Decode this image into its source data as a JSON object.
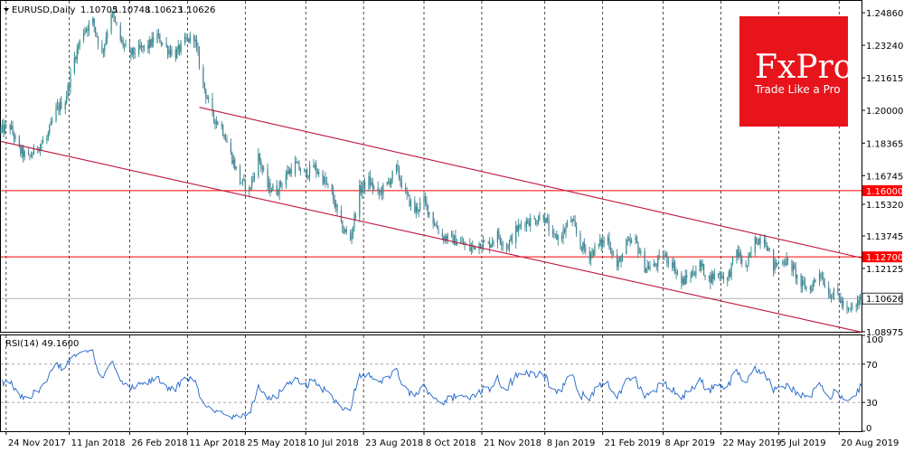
{
  "chart_data": [
    {
      "type": "candlestick",
      "title": "EURUSD,Daily",
      "ohlc": {
        "open": "1.10705",
        "high": "1.10748",
        "low": "1.10623",
        "close": "1.10626"
      },
      "ylim": [
        1.0897,
        1.2545
      ],
      "y_ticks": [
        {
          "value": 1.2486,
          "label": "1.24860"
        },
        {
          "value": 1.2324,
          "label": "1.23240"
        },
        {
          "value": 1.21615,
          "label": "1.21615"
        },
        {
          "value": 1.2,
          "label": "1.20000"
        },
        {
          "value": 1.18365,
          "label": "1.18365"
        },
        {
          "value": 1.16745,
          "label": "1.16745"
        },
        {
          "value": 1.1532,
          "label": "1.15320"
        },
        {
          "value": 1.13745,
          "label": "1.13745"
        },
        {
          "value": 1.12125,
          "label": "1.12125"
        },
        {
          "value": 1.08975,
          "label": "1.08975"
        }
      ],
      "dates": [
        "24 Nov 2017",
        "11 Jan 2018",
        "26 Feb 2018",
        "11 Apr 2018",
        "25 May 2018",
        "10 Jul 2018",
        "23 Aug 2018",
        "8 Oct 2018",
        "21 Nov 2018",
        "8 Jan 2019",
        "21 Feb 2019",
        "8 Apr 2019",
        "22 May 2019",
        "5 Jul 2019",
        "20 Aug 2019"
      ],
      "x_range": [
        "2017-11-20",
        "2019-09-06"
      ],
      "horizontal_lines": [
        {
          "value": 1.16,
          "label": "1.16000",
          "color": "#ff0000"
        },
        {
          "value": 1.127,
          "label": "1.12700",
          "color": "#ff0000"
        }
      ],
      "current_price": {
        "value": 1.10626,
        "label": "1.10626"
      },
      "channel": {
        "color": "#c0143c",
        "upper": [
          [
            "2018-04-20",
            1.2015
          ],
          [
            "2019-09-06",
            1.1265
          ]
        ],
        "lower": [
          [
            "2017-11-20",
            1.1845
          ],
          [
            "2019-09-06",
            1.0895
          ]
        ]
      },
      "price_path": [
        [
          "2017-11-20",
          1.19
        ],
        [
          "2017-11-27",
          1.192
        ],
        [
          "2017-12-04",
          1.18
        ],
        [
          "2017-12-11",
          1.176
        ],
        [
          "2017-12-18",
          1.182
        ],
        [
          "2017-12-25",
          1.186
        ],
        [
          "2018-01-01",
          1.2
        ],
        [
          "2018-01-08",
          1.205
        ],
        [
          "2018-01-15",
          1.226
        ],
        [
          "2018-01-22",
          1.24
        ],
        [
          "2018-01-29",
          1.244
        ],
        [
          "2018-02-05",
          1.228
        ],
        [
          "2018-02-12",
          1.249
        ],
        [
          "2018-02-19",
          1.235
        ],
        [
          "2018-02-26",
          1.228
        ],
        [
          "2018-03-05",
          1.23
        ],
        [
          "2018-03-12",
          1.232
        ],
        [
          "2018-03-19",
          1.237
        ],
        [
          "2018-03-26",
          1.231
        ],
        [
          "2018-04-02",
          1.228
        ],
        [
          "2018-04-09",
          1.234
        ],
        [
          "2018-04-16",
          1.237
        ],
        [
          "2018-04-23",
          1.213
        ],
        [
          "2018-04-30",
          1.197
        ],
        [
          "2018-05-07",
          1.192
        ],
        [
          "2018-05-14",
          1.178
        ],
        [
          "2018-05-21",
          1.165
        ],
        [
          "2018-05-28",
          1.16
        ],
        [
          "2018-06-04",
          1.177
        ],
        [
          "2018-06-11",
          1.162
        ],
        [
          "2018-06-18",
          1.16
        ],
        [
          "2018-06-25",
          1.168
        ],
        [
          "2018-07-02",
          1.173
        ],
        [
          "2018-07-09",
          1.168
        ],
        [
          "2018-07-16",
          1.172
        ],
        [
          "2018-07-23",
          1.166
        ],
        [
          "2018-07-30",
          1.158
        ],
        [
          "2018-08-06",
          1.142
        ],
        [
          "2018-08-13",
          1.136
        ],
        [
          "2018-08-20",
          1.16
        ],
        [
          "2018-08-27",
          1.165
        ],
        [
          "2018-09-03",
          1.158
        ],
        [
          "2018-09-10",
          1.163
        ],
        [
          "2018-09-17",
          1.171
        ],
        [
          "2018-09-24",
          1.158
        ],
        [
          "2018-10-01",
          1.15
        ],
        [
          "2018-10-08",
          1.155
        ],
        [
          "2018-10-15",
          1.145
        ],
        [
          "2018-10-22",
          1.137
        ],
        [
          "2018-10-29",
          1.136
        ],
        [
          "2018-11-05",
          1.134
        ],
        [
          "2018-11-12",
          1.131
        ],
        [
          "2018-11-19",
          1.134
        ],
        [
          "2018-11-26",
          1.133
        ],
        [
          "2018-12-03",
          1.138
        ],
        [
          "2018-12-10",
          1.132
        ],
        [
          "2018-12-17",
          1.14
        ],
        [
          "2018-12-24",
          1.145
        ],
        [
          "2018-12-31",
          1.145
        ],
        [
          "2019-01-07",
          1.148
        ],
        [
          "2019-01-14",
          1.136
        ],
        [
          "2019-01-21",
          1.138
        ],
        [
          "2019-01-28",
          1.146
        ],
        [
          "2019-02-04",
          1.133
        ],
        [
          "2019-02-11",
          1.128
        ],
        [
          "2019-02-18",
          1.133
        ],
        [
          "2019-02-25",
          1.136
        ],
        [
          "2019-03-04",
          1.122
        ],
        [
          "2019-03-11",
          1.133
        ],
        [
          "2019-03-18",
          1.135
        ],
        [
          "2019-03-25",
          1.122
        ],
        [
          "2019-04-01",
          1.122
        ],
        [
          "2019-04-08",
          1.128
        ],
        [
          "2019-04-15",
          1.124
        ],
        [
          "2019-04-22",
          1.114
        ],
        [
          "2019-04-29",
          1.118
        ],
        [
          "2019-05-06",
          1.123
        ],
        [
          "2019-05-13",
          1.116
        ],
        [
          "2019-05-20",
          1.119
        ],
        [
          "2019-05-27",
          1.116
        ],
        [
          "2019-06-03",
          1.13
        ],
        [
          "2019-06-10",
          1.121
        ],
        [
          "2019-06-17",
          1.135
        ],
        [
          "2019-06-24",
          1.137
        ],
        [
          "2019-07-01",
          1.122
        ],
        [
          "2019-07-08",
          1.126
        ],
        [
          "2019-07-15",
          1.122
        ],
        [
          "2019-07-22",
          1.113
        ],
        [
          "2019-07-29",
          1.111
        ],
        [
          "2019-08-05",
          1.12
        ],
        [
          "2019-08-12",
          1.109
        ],
        [
          "2019-08-19",
          1.108
        ],
        [
          "2019-08-26",
          1.099
        ],
        [
          "2019-09-02",
          1.103
        ],
        [
          "2019-09-06",
          1.1063
        ]
      ],
      "colors": {
        "bull": "#2e8b8b",
        "bear": "#4a7f96",
        "background": "#ffffff",
        "grid": "#000000"
      }
    },
    {
      "type": "line",
      "title": "RSI(14) 49.1600",
      "ylim": [
        0,
        100
      ],
      "y_ticks": [
        {
          "value": 100,
          "label": "100"
        },
        {
          "value": 70,
          "label": "70"
        },
        {
          "value": 30,
          "label": "30"
        },
        {
          "value": 0,
          "label": "0"
        }
      ],
      "levels": [
        70,
        30
      ],
      "line_color": "#1e64c8"
    }
  ],
  "branding": {
    "name": "FxPro",
    "tagline": "Trade Like a Pro",
    "color": "#e8141c"
  }
}
